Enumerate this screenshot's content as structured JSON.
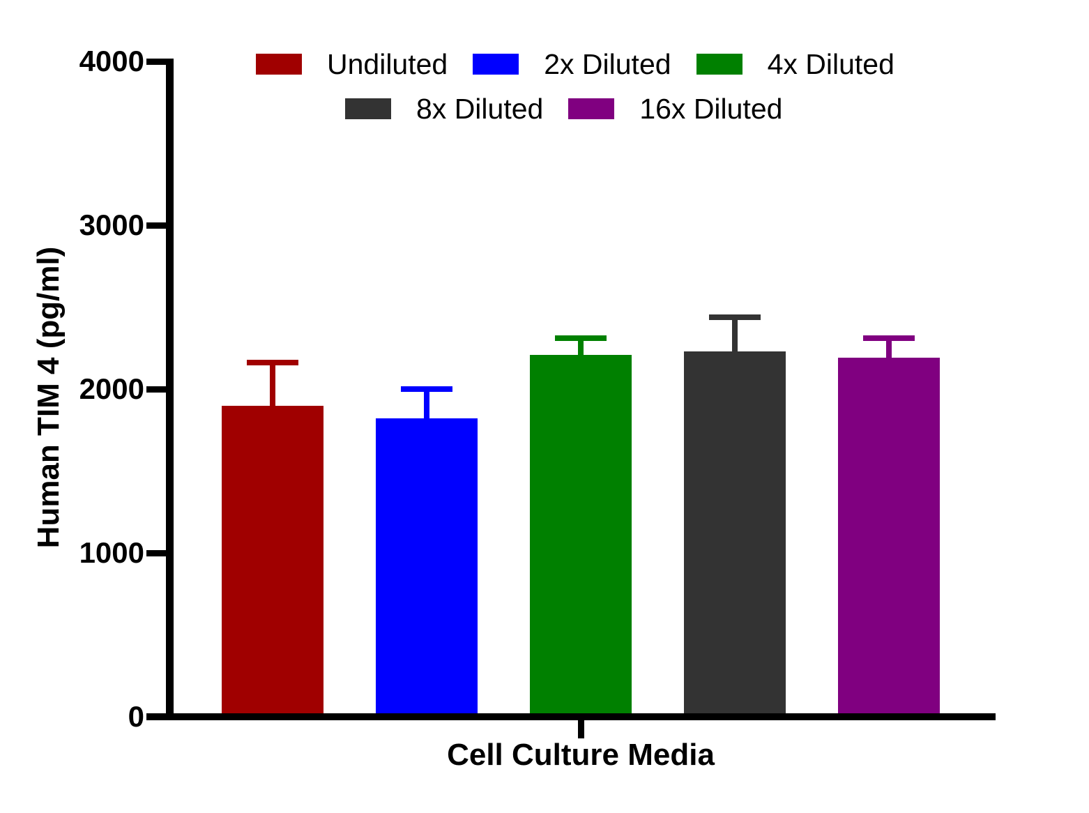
{
  "chart_data": {
    "type": "bar",
    "title": "",
    "xlabel": "Cell Culture Media",
    "ylabel": "Human TIM 4 (pg/ml)",
    "categories": [
      "Cell Culture Media"
    ],
    "series": [
      {
        "name": "Undiluted",
        "color": "#A00000",
        "value": 1900,
        "error_plus": 260
      },
      {
        "name": "2x Diluted",
        "color": "#0000FF",
        "value": 1820,
        "error_plus": 180
      },
      {
        "name": "4x Diluted",
        "color": "#008000",
        "value": 2210,
        "error_plus": 100
      },
      {
        "name": "8x Diluted",
        "color": "#333333",
        "value": 2230,
        "error_plus": 210
      },
      {
        "name": "16x Diluted",
        "color": "#800080",
        "value": 2190,
        "error_plus": 120
      }
    ],
    "ylim": [
      0,
      4000
    ],
    "yticks": [
      0,
      1000,
      2000,
      3000,
      4000
    ],
    "ytick_labels": [
      "0",
      "1000",
      "2000",
      "3000",
      "4000"
    ],
    "grid": false,
    "legend_position": "top",
    "legend_rows": [
      [
        "Undiluted",
        "2x Diluted",
        "4x Diluted"
      ],
      [
        "8x Diluted",
        "16x Diluted"
      ]
    ],
    "error_bars": "upper only",
    "axis_color": "#000000",
    "background_color": "#FFFFFF"
  }
}
